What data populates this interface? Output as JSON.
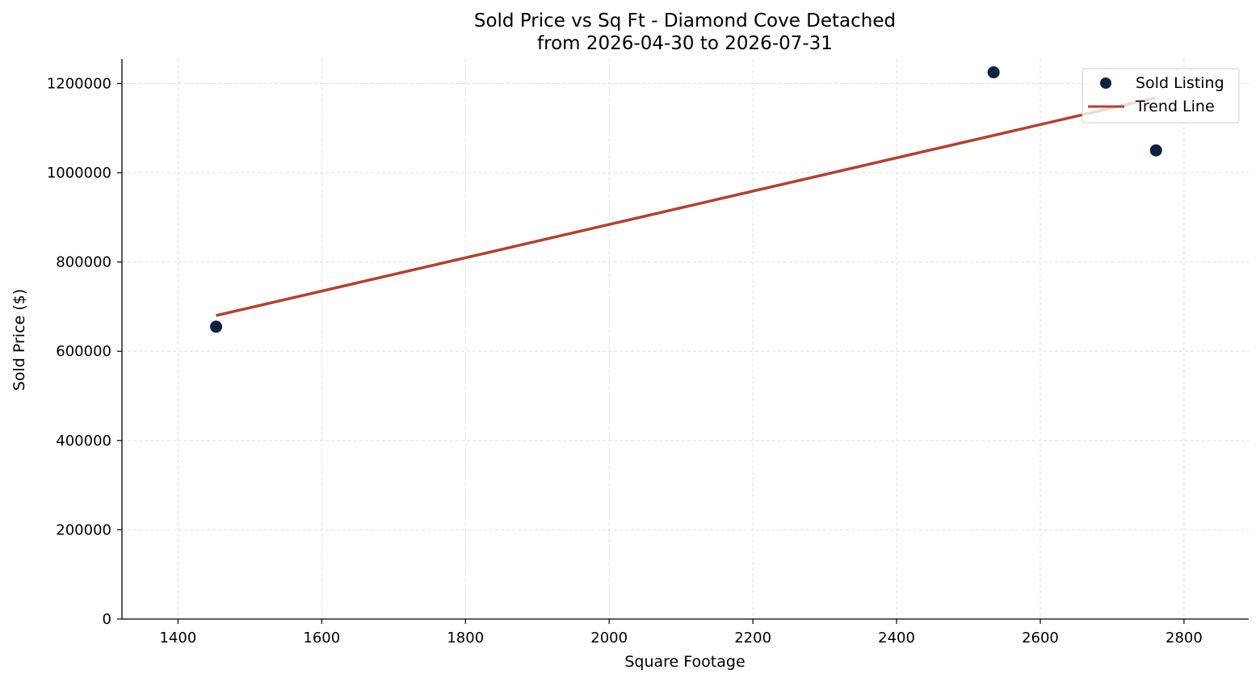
{
  "chart_data": {
    "type": "scatter",
    "title": "Sold Price vs Sq Ft - Diamond Cove Detached",
    "subtitle": "from 2026-04-30 to 2026-07-31",
    "xlabel": "Square Footage",
    "ylabel": "Sold Price ($)",
    "xlim": [
      1322,
      2890
    ],
    "ylim": [
      0,
      1255000
    ],
    "xticks": [
      1400,
      1600,
      1800,
      2000,
      2200,
      2400,
      2600,
      2800
    ],
    "yticks": [
      0,
      200000,
      400000,
      600000,
      800000,
      1000000,
      1200000
    ],
    "grid": true,
    "legend_position": "top-right",
    "legend": [
      "Sold Listing",
      "Trend Line"
    ],
    "series": [
      {
        "name": "Sold Listing",
        "kind": "scatter",
        "color": "#0b2240",
        "points": [
          {
            "x": 1453,
            "y": 655000
          },
          {
            "x": 2535,
            "y": 1225000
          },
          {
            "x": 2761,
            "y": 1050000
          }
        ]
      },
      {
        "name": "Trend Line",
        "kind": "line",
        "color": "#b5402f",
        "points": [
          {
            "x": 1453,
            "y": 680000
          },
          {
            "x": 2761,
            "y": 1168000
          }
        ]
      }
    ]
  }
}
